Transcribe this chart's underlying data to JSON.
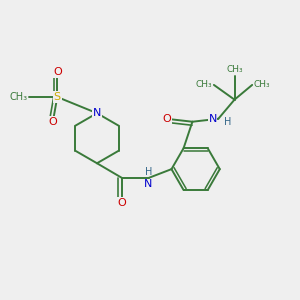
{
  "bg_color": "#efefef",
  "bond_color": "#3a7a3a",
  "N_color": "#0000cc",
  "O_color": "#cc0000",
  "S_color": "#ccaa00",
  "H_color": "#336688",
  "line_width": 1.4,
  "figsize": [
    3.0,
    3.0
  ],
  "dpi": 100,
  "xlim": [
    0,
    10
  ],
  "ylim": [
    0,
    10
  ]
}
